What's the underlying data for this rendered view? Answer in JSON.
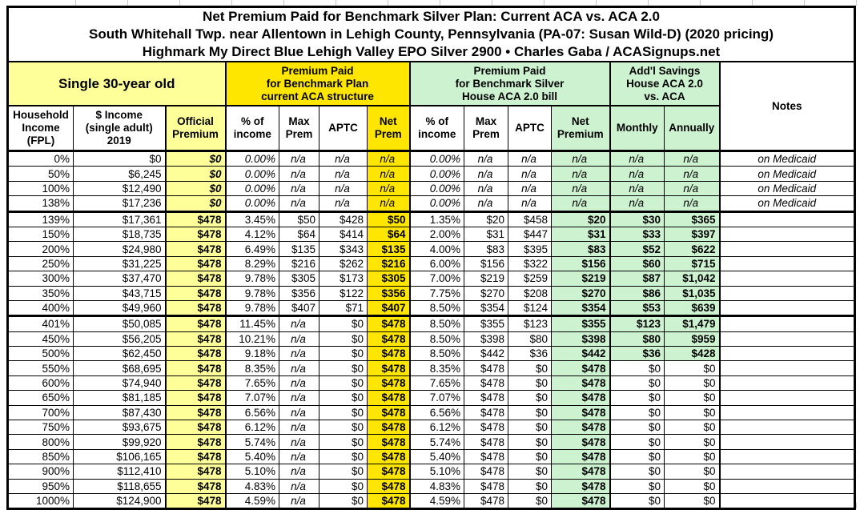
{
  "title": {
    "line1": "Net Premium Paid for Benchmark Silver Plan: Current ACA vs. ACA 2.0",
    "line2": "South Whitehall Twp. near Allentown in Lehigh County, Pennsylvania (PA-07: Susan Wild-D) (2020 pricing)",
    "line3": "Highmark My Direct Blue Lehigh Valley EPO Silver 2900 • Charles Gaba / ACASignups.net"
  },
  "colors": {
    "light_yellow": "#FFFF99",
    "bright_yellow": "#FFE600",
    "light_green": "#CCF2CF",
    "border": "#000000"
  },
  "header": {
    "group_single": "Single 30-year old",
    "group_aca": "Premium Paid\nfor Benchmark Plan\ncurrent ACA structure",
    "group_aca2": "Premium Paid\nfor Benchmark Silver\nHouse ACA 2.0 bill",
    "group_savings": "Add'l Savings\nHouse ACA 2.0\nvs. ACA",
    "notes": "Notes",
    "columns": {
      "fpl": "Household\nIncome\n(FPL)",
      "income": "$ Income\n(single adult)\n2019",
      "official": "Official\nPremium",
      "pct": "% of\nincome",
      "max": "Max\nPrem",
      "aptc": "APTC",
      "net_aca": "Net\nPrem",
      "pct2": "% of\nincome",
      "max2": "Max\nPrem",
      "aptc2": "APTC",
      "net2": "Net\nPremium",
      "monthly": "Monthly",
      "annually": "Annually"
    }
  },
  "rows": [
    {
      "cells": [
        "0%",
        "$0",
        "$0",
        "0.00%",
        "n/a",
        "n/a",
        "n/a",
        "0.00%",
        "n/a",
        "n/a",
        "n/a",
        "n/a",
        "n/a",
        "on Medicaid"
      ],
      "medicaid": true,
      "savings_green": true,
      "thick_bottom": false
    },
    {
      "cells": [
        "50%",
        "$6,245",
        "$0",
        "0.00%",
        "n/a",
        "n/a",
        "n/a",
        "0.00%",
        "n/a",
        "n/a",
        "n/a",
        "n/a",
        "n/a",
        "on Medicaid"
      ],
      "medicaid": true,
      "savings_green": true,
      "thick_bottom": false
    },
    {
      "cells": [
        "100%",
        "$12,490",
        "$0",
        "0.00%",
        "n/a",
        "n/a",
        "n/a",
        "0.00%",
        "n/a",
        "n/a",
        "n/a",
        "n/a",
        "n/a",
        "on Medicaid"
      ],
      "medicaid": true,
      "savings_green": true,
      "thick_bottom": false
    },
    {
      "cells": [
        "138%",
        "$17,236",
        "$0",
        "0.00%",
        "n/a",
        "n/a",
        "n/a",
        "0.00%",
        "n/a",
        "n/a",
        "n/a",
        "n/a",
        "n/a",
        "on Medicaid"
      ],
      "medicaid": true,
      "savings_green": true,
      "thick_bottom": true
    },
    {
      "cells": [
        "139%",
        "$17,361",
        "$478",
        "3.45%",
        "$50",
        "$428",
        "$50",
        "1.35%",
        "$20",
        "$458",
        "$20",
        "$30",
        "$365",
        ""
      ],
      "medicaid": false,
      "savings_green": true,
      "thick_bottom": false
    },
    {
      "cells": [
        "150%",
        "$18,735",
        "$478",
        "4.12%",
        "$64",
        "$414",
        "$64",
        "2.00%",
        "$31",
        "$447",
        "$31",
        "$33",
        "$397",
        ""
      ],
      "medicaid": false,
      "savings_green": true,
      "thick_bottom": false
    },
    {
      "cells": [
        "200%",
        "$24,980",
        "$478",
        "6.49%",
        "$135",
        "$343",
        "$135",
        "4.00%",
        "$83",
        "$395",
        "$83",
        "$52",
        "$622",
        ""
      ],
      "medicaid": false,
      "savings_green": true,
      "thick_bottom": false
    },
    {
      "cells": [
        "250%",
        "$31,225",
        "$478",
        "8.29%",
        "$216",
        "$262",
        "$216",
        "6.00%",
        "$156",
        "$322",
        "$156",
        "$60",
        "$715",
        ""
      ],
      "medicaid": false,
      "savings_green": true,
      "thick_bottom": false
    },
    {
      "cells": [
        "300%",
        "$37,470",
        "$478",
        "9.78%",
        "$305",
        "$173",
        "$305",
        "7.00%",
        "$219",
        "$259",
        "$219",
        "$87",
        "$1,042",
        ""
      ],
      "medicaid": false,
      "savings_green": true,
      "thick_bottom": false
    },
    {
      "cells": [
        "350%",
        "$43,715",
        "$478",
        "9.78%",
        "$356",
        "$122",
        "$356",
        "7.75%",
        "$270",
        "$208",
        "$270",
        "$86",
        "$1,035",
        ""
      ],
      "medicaid": false,
      "savings_green": true,
      "thick_bottom": false
    },
    {
      "cells": [
        "400%",
        "$49,960",
        "$478",
        "9.78%",
        "$407",
        "$71",
        "$407",
        "8.50%",
        "$354",
        "$124",
        "$354",
        "$53",
        "$639",
        ""
      ],
      "medicaid": false,
      "savings_green": true,
      "thick_bottom": true
    },
    {
      "cells": [
        "401%",
        "$50,085",
        "$478",
        "11.45%",
        "n/a",
        "$0",
        "$478",
        "8.50%",
        "$355",
        "$123",
        "$355",
        "$123",
        "$1,479",
        ""
      ],
      "medicaid": false,
      "savings_green": true,
      "thick_bottom": false
    },
    {
      "cells": [
        "450%",
        "$56,205",
        "$478",
        "10.21%",
        "n/a",
        "$0",
        "$478",
        "8.50%",
        "$398",
        "$80",
        "$398",
        "$80",
        "$959",
        ""
      ],
      "medicaid": false,
      "savings_green": true,
      "thick_bottom": false
    },
    {
      "cells": [
        "500%",
        "$62,450",
        "$478",
        "9.18%",
        "n/a",
        "$0",
        "$478",
        "8.50%",
        "$442",
        "$36",
        "$442",
        "$36",
        "$428",
        ""
      ],
      "medicaid": false,
      "savings_green": true,
      "thick_bottom": false
    },
    {
      "cells": [
        "550%",
        "$68,695",
        "$478",
        "8.35%",
        "n/a",
        "$0",
        "$478",
        "8.35%",
        "$478",
        "$0",
        "$478",
        "$0",
        "$0",
        ""
      ],
      "medicaid": false,
      "savings_green": false,
      "thick_bottom": false
    },
    {
      "cells": [
        "600%",
        "$74,940",
        "$478",
        "7.65%",
        "n/a",
        "$0",
        "$478",
        "7.65%",
        "$478",
        "$0",
        "$478",
        "$0",
        "$0",
        ""
      ],
      "medicaid": false,
      "savings_green": false,
      "thick_bottom": false
    },
    {
      "cells": [
        "650%",
        "$81,185",
        "$478",
        "7.07%",
        "n/a",
        "$0",
        "$478",
        "7.07%",
        "$478",
        "$0",
        "$478",
        "$0",
        "$0",
        ""
      ],
      "medicaid": false,
      "savings_green": false,
      "thick_bottom": false
    },
    {
      "cells": [
        "700%",
        "$87,430",
        "$478",
        "6.56%",
        "n/a",
        "$0",
        "$478",
        "6.56%",
        "$478",
        "$0",
        "$478",
        "$0",
        "$0",
        ""
      ],
      "medicaid": false,
      "savings_green": false,
      "thick_bottom": false
    },
    {
      "cells": [
        "750%",
        "$93,675",
        "$478",
        "6.12%",
        "n/a",
        "$0",
        "$478",
        "6.12%",
        "$478",
        "$0",
        "$478",
        "$0",
        "$0",
        ""
      ],
      "medicaid": false,
      "savings_green": false,
      "thick_bottom": false
    },
    {
      "cells": [
        "800%",
        "$99,920",
        "$478",
        "5.74%",
        "n/a",
        "$0",
        "$478",
        "5.74%",
        "$478",
        "$0",
        "$478",
        "$0",
        "$0",
        ""
      ],
      "medicaid": false,
      "savings_green": false,
      "thick_bottom": false
    },
    {
      "cells": [
        "850%",
        "$106,165",
        "$478",
        "5.40%",
        "n/a",
        "$0",
        "$478",
        "5.40%",
        "$478",
        "$0",
        "$478",
        "$0",
        "$0",
        ""
      ],
      "medicaid": false,
      "savings_green": false,
      "thick_bottom": false
    },
    {
      "cells": [
        "900%",
        "$112,410",
        "$478",
        "5.10%",
        "n/a",
        "$0",
        "$478",
        "5.10%",
        "$478",
        "$0",
        "$478",
        "$0",
        "$0",
        ""
      ],
      "medicaid": false,
      "savings_green": false,
      "thick_bottom": false
    },
    {
      "cells": [
        "950%",
        "$118,655",
        "$478",
        "4.83%",
        "n/a",
        "$0",
        "$478",
        "4.83%",
        "$478",
        "$0",
        "$478",
        "$0",
        "$0",
        ""
      ],
      "medicaid": false,
      "savings_green": false,
      "thick_bottom": false
    },
    {
      "cells": [
        "1000%",
        "$124,900",
        "$478",
        "4.59%",
        "n/a",
        "$0",
        "$478",
        "4.59%",
        "$478",
        "$0",
        "$478",
        "$0",
        "$0",
        ""
      ],
      "medicaid": false,
      "savings_green": false,
      "thick_bottom": false
    }
  ]
}
